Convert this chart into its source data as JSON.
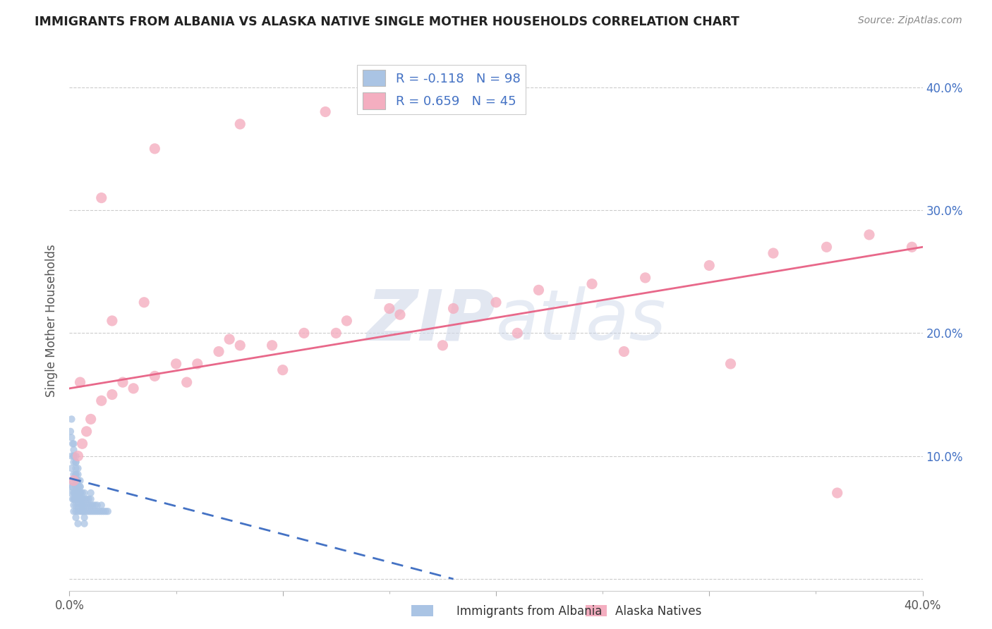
{
  "title": "IMMIGRANTS FROM ALBANIA VS ALASKA NATIVE SINGLE MOTHER HOUSEHOLDS CORRELATION CHART",
  "source": "Source: ZipAtlas.com",
  "ylabel": "Single Mother Households",
  "legend_label1": "Immigrants from Albania",
  "legend_label2": "Alaska Natives",
  "r1": -0.118,
  "n1": 98,
  "r2": 0.659,
  "n2": 45,
  "color1": "#aac4e4",
  "color2": "#f4aec0",
  "line1_color": "#4472c4",
  "line2_color": "#e8688a",
  "watermark_zip": "ZIP",
  "watermark_atlas": "atlas",
  "xlim": [
    0.0,
    0.4
  ],
  "ylim": [
    -0.01,
    0.43
  ],
  "yticks": [
    0.0,
    0.1,
    0.2,
    0.3,
    0.4
  ],
  "albania_x": [
    0.0005,
    0.001,
    0.001,
    0.0015,
    0.0015,
    0.002,
    0.002,
    0.002,
    0.0025,
    0.0025,
    0.003,
    0.003,
    0.003,
    0.003,
    0.003,
    0.003,
    0.0035,
    0.0035,
    0.004,
    0.004,
    0.004,
    0.004,
    0.004,
    0.0045,
    0.0045,
    0.005,
    0.005,
    0.005,
    0.005,
    0.0055,
    0.006,
    0.006,
    0.006,
    0.006,
    0.007,
    0.007,
    0.007,
    0.007,
    0.008,
    0.008,
    0.008,
    0.009,
    0.009,
    0.009,
    0.01,
    0.01,
    0.01,
    0.01,
    0.011,
    0.011,
    0.012,
    0.012,
    0.013,
    0.013,
    0.014,
    0.015,
    0.015,
    0.016,
    0.017,
    0.018,
    0.001,
    0.001,
    0.002,
    0.002,
    0.003,
    0.003,
    0.004,
    0.004,
    0.005,
    0.005,
    0.0005,
    0.001,
    0.0015,
    0.002,
    0.002,
    0.003,
    0.003,
    0.003,
    0.004,
    0.004,
    0.005,
    0.005,
    0.006,
    0.006,
    0.007,
    0.007,
    0.001,
    0.002,
    0.002,
    0.003,
    0.003,
    0.004,
    0.004,
    0.005,
    0.005,
    0.002,
    0.003,
    0.004
  ],
  "albania_y": [
    0.07,
    0.075,
    0.08,
    0.065,
    0.075,
    0.06,
    0.065,
    0.07,
    0.065,
    0.07,
    0.055,
    0.06,
    0.065,
    0.07,
    0.075,
    0.08,
    0.065,
    0.07,
    0.055,
    0.06,
    0.065,
    0.07,
    0.075,
    0.065,
    0.07,
    0.055,
    0.06,
    0.065,
    0.07,
    0.065,
    0.055,
    0.06,
    0.065,
    0.07,
    0.055,
    0.06,
    0.065,
    0.07,
    0.055,
    0.06,
    0.065,
    0.055,
    0.06,
    0.065,
    0.055,
    0.06,
    0.065,
    0.07,
    0.055,
    0.06,
    0.055,
    0.06,
    0.055,
    0.06,
    0.055,
    0.055,
    0.06,
    0.055,
    0.055,
    0.055,
    0.1,
    0.09,
    0.095,
    0.085,
    0.085,
    0.08,
    0.08,
    0.075,
    0.075,
    0.07,
    0.12,
    0.115,
    0.11,
    0.105,
    0.1,
    0.095,
    0.09,
    0.085,
    0.08,
    0.075,
    0.07,
    0.065,
    0.06,
    0.055,
    0.05,
    0.045,
    0.13,
    0.11,
    0.1,
    0.1,
    0.095,
    0.09,
    0.085,
    0.08,
    0.075,
    0.055,
    0.05,
    0.045
  ],
  "alaska_x": [
    0.002,
    0.004,
    0.006,
    0.008,
    0.01,
    0.015,
    0.02,
    0.025,
    0.03,
    0.04,
    0.05,
    0.06,
    0.07,
    0.08,
    0.095,
    0.11,
    0.13,
    0.155,
    0.18,
    0.2,
    0.22,
    0.245,
    0.27,
    0.3,
    0.33,
    0.355,
    0.375,
    0.395,
    0.02,
    0.035,
    0.055,
    0.075,
    0.1,
    0.125,
    0.15,
    0.175,
    0.21,
    0.26,
    0.31,
    0.36,
    0.005,
    0.015,
    0.04,
    0.08,
    0.12
  ],
  "alaska_y": [
    0.08,
    0.1,
    0.11,
    0.12,
    0.13,
    0.145,
    0.15,
    0.16,
    0.155,
    0.165,
    0.175,
    0.175,
    0.185,
    0.19,
    0.19,
    0.2,
    0.21,
    0.215,
    0.22,
    0.225,
    0.235,
    0.24,
    0.245,
    0.255,
    0.265,
    0.27,
    0.28,
    0.27,
    0.21,
    0.225,
    0.16,
    0.195,
    0.17,
    0.2,
    0.22,
    0.19,
    0.2,
    0.185,
    0.175,
    0.07,
    0.16,
    0.31,
    0.35,
    0.37,
    0.38
  ],
  "trendline1_x": [
    0.0,
    0.18
  ],
  "trendline1_y": [
    0.082,
    0.0
  ],
  "trendline2_x": [
    0.0,
    0.4
  ],
  "trendline2_y": [
    0.155,
    0.27
  ]
}
